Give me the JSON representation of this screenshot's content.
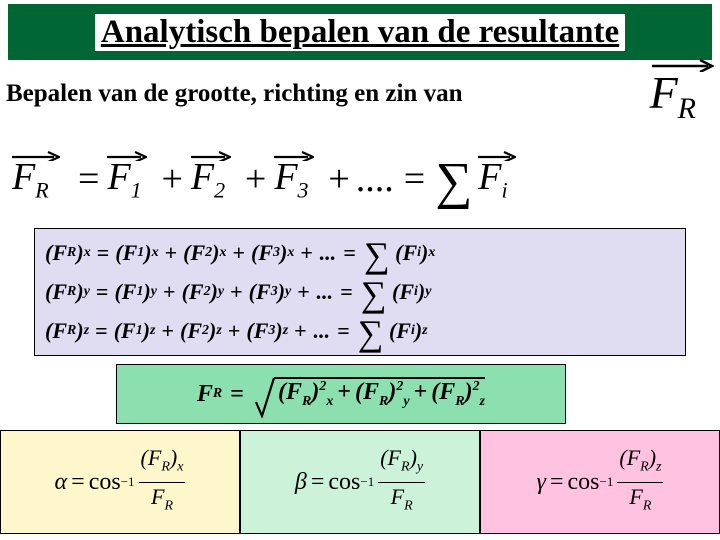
{
  "title": "Analytisch bepalen van de resultante",
  "subtitle": "Bepalen van de grootte, richting en zin van",
  "colors": {
    "banner": "#006633",
    "components_bg": "#e0dcf2",
    "magnitude_bg": "#8ce0b0",
    "alpha_bg": "#fff7cc",
    "beta_bg": "#ccf2d9",
    "gamma_bg": "#ffc2e0",
    "page_bg": "#ffffff",
    "text": "#000000"
  },
  "symbols": {
    "FR": "F",
    "FR_sub": "R",
    "F1": "F",
    "F1_sub": "1",
    "F2": "F",
    "F2_sub": "2",
    "F3": "F",
    "F3_sub": "3",
    "Fi": "F",
    "Fi_sub": "i",
    "dots": "....",
    "equals": "=",
    "plus": "+",
    "sigma": "∑"
  },
  "components": {
    "rows": [
      {
        "axis": "x"
      },
      {
        "axis": "y"
      },
      {
        "axis": "z"
      }
    ],
    "dots": "..."
  },
  "magnitude": {
    "lhs": "F",
    "lhs_sub": "R",
    "exp": "2",
    "axes": [
      "x",
      "y",
      "z"
    ]
  },
  "angles": {
    "boxes": [
      {
        "sym": "α",
        "axis": "x",
        "bg": "alpha_bg"
      },
      {
        "sym": "β",
        "axis": "y",
        "bg": "beta_bg"
      },
      {
        "sym": "γ",
        "axis": "z",
        "bg": "gamma_bg"
      }
    ],
    "cos": "cos",
    "inv": "−1",
    "num_F": "F",
    "num_sub": "R",
    "den_F": "F",
    "den_sub": "R",
    "lparen": "(",
    "rparen": ")"
  }
}
